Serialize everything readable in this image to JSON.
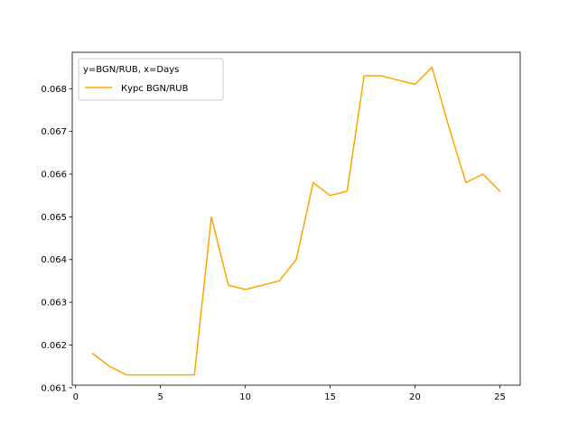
{
  "chart_data": {
    "type": "line",
    "title": "",
    "xlabel": "",
    "ylabel": "",
    "xlim": [
      -0.2,
      26.2
    ],
    "ylim": [
      0.06106,
      0.06885
    ],
    "xticks": [
      0,
      5,
      10,
      15,
      20,
      25
    ],
    "xtick_labels": [
      "0",
      "5",
      "10",
      "15",
      "20",
      "25"
    ],
    "yticks": [
      0.061,
      0.062,
      0.063,
      0.064,
      0.065,
      0.066,
      0.067,
      0.068
    ],
    "ytick_labels": [
      "0.061",
      "0.062",
      "0.063",
      "0.064",
      "0.065",
      "0.066",
      "0.067",
      "0.068"
    ],
    "grid": false,
    "legend": {
      "placement": "top-left",
      "title": "y=BGN/RUB, x=Days",
      "entries": [
        "Курс BGN/RUB"
      ]
    },
    "series": [
      {
        "name": "Курс BGN/RUB",
        "color": "#ffa500",
        "x": [
          1,
          2,
          3,
          4,
          5,
          6,
          7,
          8,
          9,
          10,
          11,
          12,
          13,
          14,
          15,
          16,
          17,
          18,
          19,
          20,
          21,
          22,
          23,
          24,
          25
        ],
        "y": [
          0.0618,
          0.0615,
          0.0613,
          0.0613,
          0.0613,
          0.0613,
          0.0613,
          0.065,
          0.0634,
          0.0633,
          0.0634,
          0.0635,
          0.064,
          0.0658,
          0.0655,
          0.0656,
          0.0683,
          0.0683,
          0.0682,
          0.0681,
          0.0685,
          0.0671,
          0.0658,
          0.066,
          0.0656
        ]
      }
    ]
  }
}
